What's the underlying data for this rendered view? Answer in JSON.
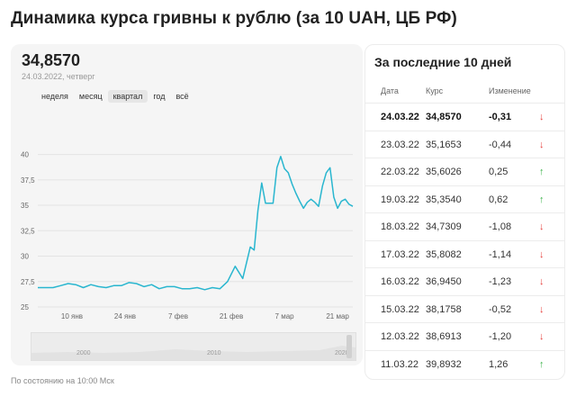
{
  "title": "Динамика курса гривны к рублю (за 10 UAH, ЦБ РФ)",
  "current": {
    "value": "34,8570",
    "date": "24.03.2022, четверг"
  },
  "periods": [
    "неделя",
    "месяц",
    "квартал",
    "год",
    "всё"
  ],
  "active_period": "квартал",
  "navigator": {
    "labels": [
      "2000",
      "2010",
      "2020"
    ]
  },
  "footnote": "По состоянию на 10:00 Мск",
  "colors": {
    "line": "#29b6cf",
    "down": "#e8413d",
    "up": "#3cb34a"
  },
  "chart_data": {
    "type": "line",
    "ylim": [
      25,
      42
    ],
    "y_ticks": [
      "40",
      "37,5",
      "35",
      "32,5",
      "30",
      "27,5",
      "25"
    ],
    "x_ticks": [
      "10 янв",
      "24 янв",
      "7 фев",
      "21 фев",
      "7 мар",
      "21 мар"
    ],
    "x_tick_days": [
      9,
      23,
      37,
      51,
      65,
      79
    ],
    "x_range_days": [
      0,
      83
    ],
    "series": [
      {
        "x_days": [
          0,
          2,
          4,
          6,
          8,
          10,
          12,
          14,
          16,
          18,
          20,
          22,
          24,
          26,
          28,
          30,
          32,
          34,
          36,
          38,
          40,
          42,
          44,
          46,
          48,
          50,
          52,
          54,
          56,
          57,
          58,
          59,
          60,
          62,
          63,
          64,
          65,
          66,
          67,
          68,
          69,
          70,
          71,
          72,
          73,
          74,
          75,
          76,
          77,
          78,
          79,
          80,
          81,
          82,
          83
        ],
        "values": [
          26.9,
          26.9,
          26.9,
          27.1,
          27.3,
          27.2,
          26.9,
          27.2,
          27.0,
          26.9,
          27.1,
          27.1,
          27.4,
          27.3,
          27.0,
          27.2,
          26.8,
          27.0,
          27.0,
          26.8,
          26.8,
          26.9,
          26.7,
          26.9,
          26.8,
          27.5,
          29.0,
          27.8,
          30.9,
          30.6,
          34.5,
          37.2,
          35.2,
          35.2,
          38.7,
          39.8,
          38.6,
          38.2,
          37.1,
          36.2,
          35.4,
          34.7,
          35.3,
          35.6,
          35.3,
          34.9,
          36.9,
          38.2,
          38.7,
          35.8,
          34.7,
          35.4,
          35.6,
          35.1,
          34.9
        ]
      }
    ]
  },
  "table": {
    "title": "За последние 10 дней",
    "headers": {
      "date": "Дата",
      "rate": "Курс",
      "change": "Изменение"
    },
    "rows": [
      {
        "date": "24.03.22",
        "rate": "34,8570",
        "change": "-0,31",
        "dir": "down"
      },
      {
        "date": "23.03.22",
        "rate": "35,1653",
        "change": "-0,44",
        "dir": "down"
      },
      {
        "date": "22.03.22",
        "rate": "35,6026",
        "change": "0,25",
        "dir": "up"
      },
      {
        "date": "19.03.22",
        "rate": "35,3540",
        "change": "0,62",
        "dir": "up"
      },
      {
        "date": "18.03.22",
        "rate": "34,7309",
        "change": "-1,08",
        "dir": "down"
      },
      {
        "date": "17.03.22",
        "rate": "35,8082",
        "change": "-1,14",
        "dir": "down"
      },
      {
        "date": "16.03.22",
        "rate": "36,9450",
        "change": "-1,23",
        "dir": "down"
      },
      {
        "date": "15.03.22",
        "rate": "38,1758",
        "change": "-0,52",
        "dir": "down"
      },
      {
        "date": "12.03.22",
        "rate": "38,6913",
        "change": "-1,20",
        "dir": "down"
      },
      {
        "date": "11.03.22",
        "rate": "39,8932",
        "change": "1,26",
        "dir": "up"
      }
    ]
  }
}
